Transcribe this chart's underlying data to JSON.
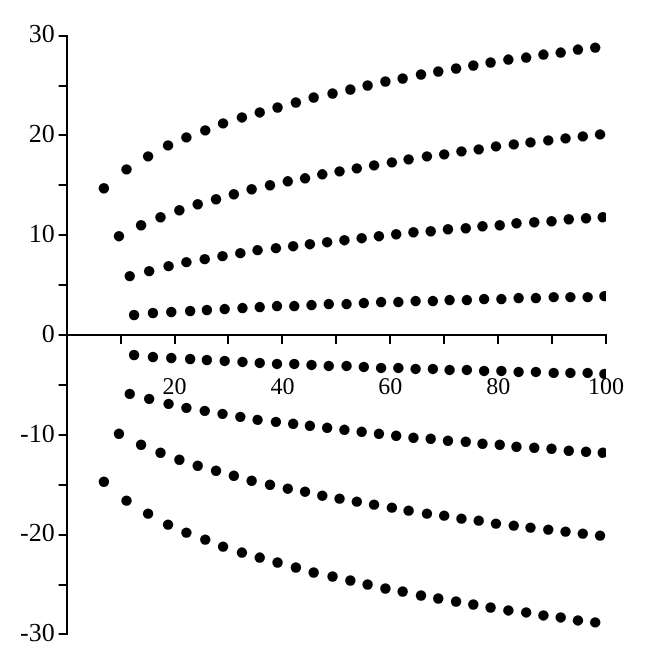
{
  "chart_data": {
    "type": "scatter",
    "xlim": [
      0,
      100
    ],
    "ylim": [
      -30,
      30
    ],
    "xticks": [
      {
        "value": 10,
        "label": null
      },
      20,
      {
        "value": 30,
        "label": null
      },
      40,
      {
        "value": 50,
        "label": null
      },
      60,
      {
        "value": 70,
        "label": null
      },
      80,
      {
        "value": 90,
        "label": null
      },
      100
    ],
    "yticks": [
      -30,
      {
        "value": -25,
        "label": null
      },
      -20,
      {
        "value": -15,
        "label": null
      },
      -10,
      {
        "value": -5,
        "label": null
      },
      0,
      {
        "value": 5,
        "label": null
      },
      10,
      {
        "value": 15,
        "label": null
      },
      20,
      {
        "value": 25,
        "label": null
      },
      30
    ],
    "grid": false,
    "legend": false,
    "marker": "circle",
    "series": [
      {
        "color": "#000000",
        "x": [
          6.9,
          11.1,
          15.1,
          18.8,
          22.2,
          25.7,
          29.0,
          32.5,
          35.8,
          39.1,
          42.5,
          45.8,
          49.3,
          52.6,
          55.8,
          59.1,
          62.3,
          65.7,
          68.9,
          72.2,
          75.4,
          78.6,
          81.9,
          85.2,
          88.4,
          91.6,
          94.8,
          98.0
        ],
        "values": [
          14.7,
          16.6,
          17.9,
          19.0,
          19.8,
          20.5,
          21.2,
          21.8,
          22.3,
          22.8,
          23.3,
          23.8,
          24.2,
          24.6,
          25.0,
          25.4,
          25.7,
          26.1,
          26.4,
          26.7,
          27.0,
          27.3,
          27.6,
          27.8,
          28.1,
          28.3,
          28.6,
          28.8
        ]
      },
      {
        "color": "#000000",
        "x": [
          9.7,
          13.8,
          17.4,
          20.9,
          24.3,
          27.7,
          31.0,
          34.3,
          37.7,
          41.0,
          44.2,
          47.4,
          50.6,
          53.8,
          57.0,
          60.3,
          63.4,
          66.8,
          70.0,
          73.2,
          76.4,
          79.6,
          82.9,
          86.0,
          89.3,
          92.5,
          95.7,
          98.9
        ],
        "values": [
          9.9,
          11.0,
          11.8,
          12.5,
          13.1,
          13.6,
          14.1,
          14.6,
          15.0,
          15.4,
          15.7,
          16.1,
          16.4,
          16.7,
          17.0,
          17.3,
          17.6,
          17.9,
          18.1,
          18.4,
          18.6,
          18.9,
          19.1,
          19.3,
          19.5,
          19.7,
          19.9,
          20.1
        ]
      },
      {
        "color": "#000000",
        "x": [
          11.7,
          15.3,
          18.9,
          22.2,
          25.6,
          28.9,
          32.2,
          35.4,
          38.8,
          42.0,
          45.1,
          48.3,
          51.5,
          54.7,
          57.9,
          61.1,
          64.3,
          67.5,
          70.7,
          74.0,
          77.1,
          80.3,
          83.4,
          86.7,
          89.9,
          93.1,
          96.3,
          99.4
        ],
        "values": [
          5.9,
          6.4,
          6.9,
          7.3,
          7.6,
          7.9,
          8.2,
          8.5,
          8.7,
          8.9,
          9.1,
          9.3,
          9.5,
          9.7,
          9.9,
          10.1,
          10.3,
          10.4,
          10.6,
          10.7,
          10.9,
          11.0,
          11.2,
          11.3,
          11.4,
          11.6,
          11.7,
          11.8
        ]
      },
      {
        "color": "#000000",
        "x": [
          12.5,
          16.0,
          19.4,
          22.9,
          26.0,
          29.3,
          32.6,
          35.8,
          39.0,
          42.2,
          45.4,
          48.6,
          51.9,
          55.1,
          58.3,
          61.5,
          64.7,
          67.9,
          71.0,
          74.2,
          77.4,
          80.6,
          83.8,
          87.0,
          90.3,
          93.4,
          96.6,
          99.7
        ],
        "values": [
          2.0,
          2.2,
          2.3,
          2.4,
          2.5,
          2.6,
          2.7,
          2.8,
          2.9,
          2.9,
          3.0,
          3.1,
          3.1,
          3.2,
          3.3,
          3.3,
          3.4,
          3.4,
          3.5,
          3.5,
          3.6,
          3.6,
          3.7,
          3.7,
          3.8,
          3.8,
          3.8,
          3.9
        ]
      },
      {
        "color": "#000000",
        "x": [
          12.5,
          16.0,
          19.4,
          22.9,
          26.0,
          29.3,
          32.6,
          35.8,
          39.0,
          42.2,
          45.4,
          48.6,
          51.9,
          55.1,
          58.3,
          61.5,
          64.7,
          67.9,
          71.0,
          74.2,
          77.4,
          80.6,
          83.8,
          87.0,
          90.3,
          93.4,
          96.6,
          99.7
        ],
        "values": [
          -2.0,
          -2.2,
          -2.3,
          -2.4,
          -2.5,
          -2.6,
          -2.7,
          -2.8,
          -2.9,
          -2.9,
          -3.0,
          -3.1,
          -3.1,
          -3.2,
          -3.3,
          -3.3,
          -3.4,
          -3.4,
          -3.5,
          -3.5,
          -3.6,
          -3.6,
          -3.7,
          -3.7,
          -3.8,
          -3.8,
          -3.8,
          -3.9
        ]
      },
      {
        "color": "#000000",
        "x": [
          11.7,
          15.3,
          18.9,
          22.2,
          25.6,
          28.9,
          32.2,
          35.4,
          38.8,
          42.0,
          45.1,
          48.3,
          51.5,
          54.7,
          57.9,
          61.1,
          64.3,
          67.5,
          70.7,
          74.0,
          77.1,
          80.3,
          83.4,
          86.7,
          89.9,
          93.1,
          96.3,
          99.4
        ],
        "values": [
          -5.9,
          -6.4,
          -6.9,
          -7.3,
          -7.6,
          -7.9,
          -8.2,
          -8.5,
          -8.7,
          -8.9,
          -9.1,
          -9.3,
          -9.5,
          -9.7,
          -9.9,
          -10.1,
          -10.3,
          -10.4,
          -10.6,
          -10.7,
          -10.9,
          -11.0,
          -11.2,
          -11.3,
          -11.4,
          -11.6,
          -11.7,
          -11.8
        ]
      },
      {
        "color": "#000000",
        "x": [
          9.7,
          13.8,
          17.4,
          20.9,
          24.3,
          27.7,
          31.0,
          34.3,
          37.7,
          41.0,
          44.2,
          47.4,
          50.6,
          53.8,
          57.0,
          60.3,
          63.4,
          66.8,
          70.0,
          73.2,
          76.4,
          79.6,
          82.9,
          86.0,
          89.3,
          92.5,
          95.7,
          98.9
        ],
        "values": [
          -9.9,
          -11.0,
          -11.8,
          -12.5,
          -13.1,
          -13.6,
          -14.1,
          -14.6,
          -15.0,
          -15.4,
          -15.7,
          -16.1,
          -16.4,
          -16.7,
          -17.0,
          -17.3,
          -17.6,
          -17.9,
          -18.1,
          -18.4,
          -18.6,
          -18.9,
          -19.1,
          -19.3,
          -19.5,
          -19.7,
          -19.9,
          -20.1
        ]
      },
      {
        "color": "#000000",
        "x": [
          6.9,
          11.1,
          15.1,
          18.8,
          22.2,
          25.7,
          29.0,
          32.5,
          35.8,
          39.1,
          42.5,
          45.8,
          49.3,
          52.6,
          55.8,
          59.1,
          62.3,
          65.7,
          68.9,
          72.2,
          75.4,
          78.6,
          81.9,
          85.2,
          88.4,
          91.6,
          94.8,
          98.0
        ],
        "values": [
          -14.7,
          -16.6,
          -17.9,
          -19.0,
          -19.8,
          -20.5,
          -21.2,
          -21.8,
          -22.3,
          -22.8,
          -23.3,
          -23.8,
          -24.2,
          -24.6,
          -25.0,
          -25.4,
          -25.7,
          -26.1,
          -26.4,
          -26.7,
          -27.0,
          -27.3,
          -27.6,
          -27.8,
          -28.1,
          -28.3,
          -28.6,
          -28.8
        ]
      }
    ]
  }
}
